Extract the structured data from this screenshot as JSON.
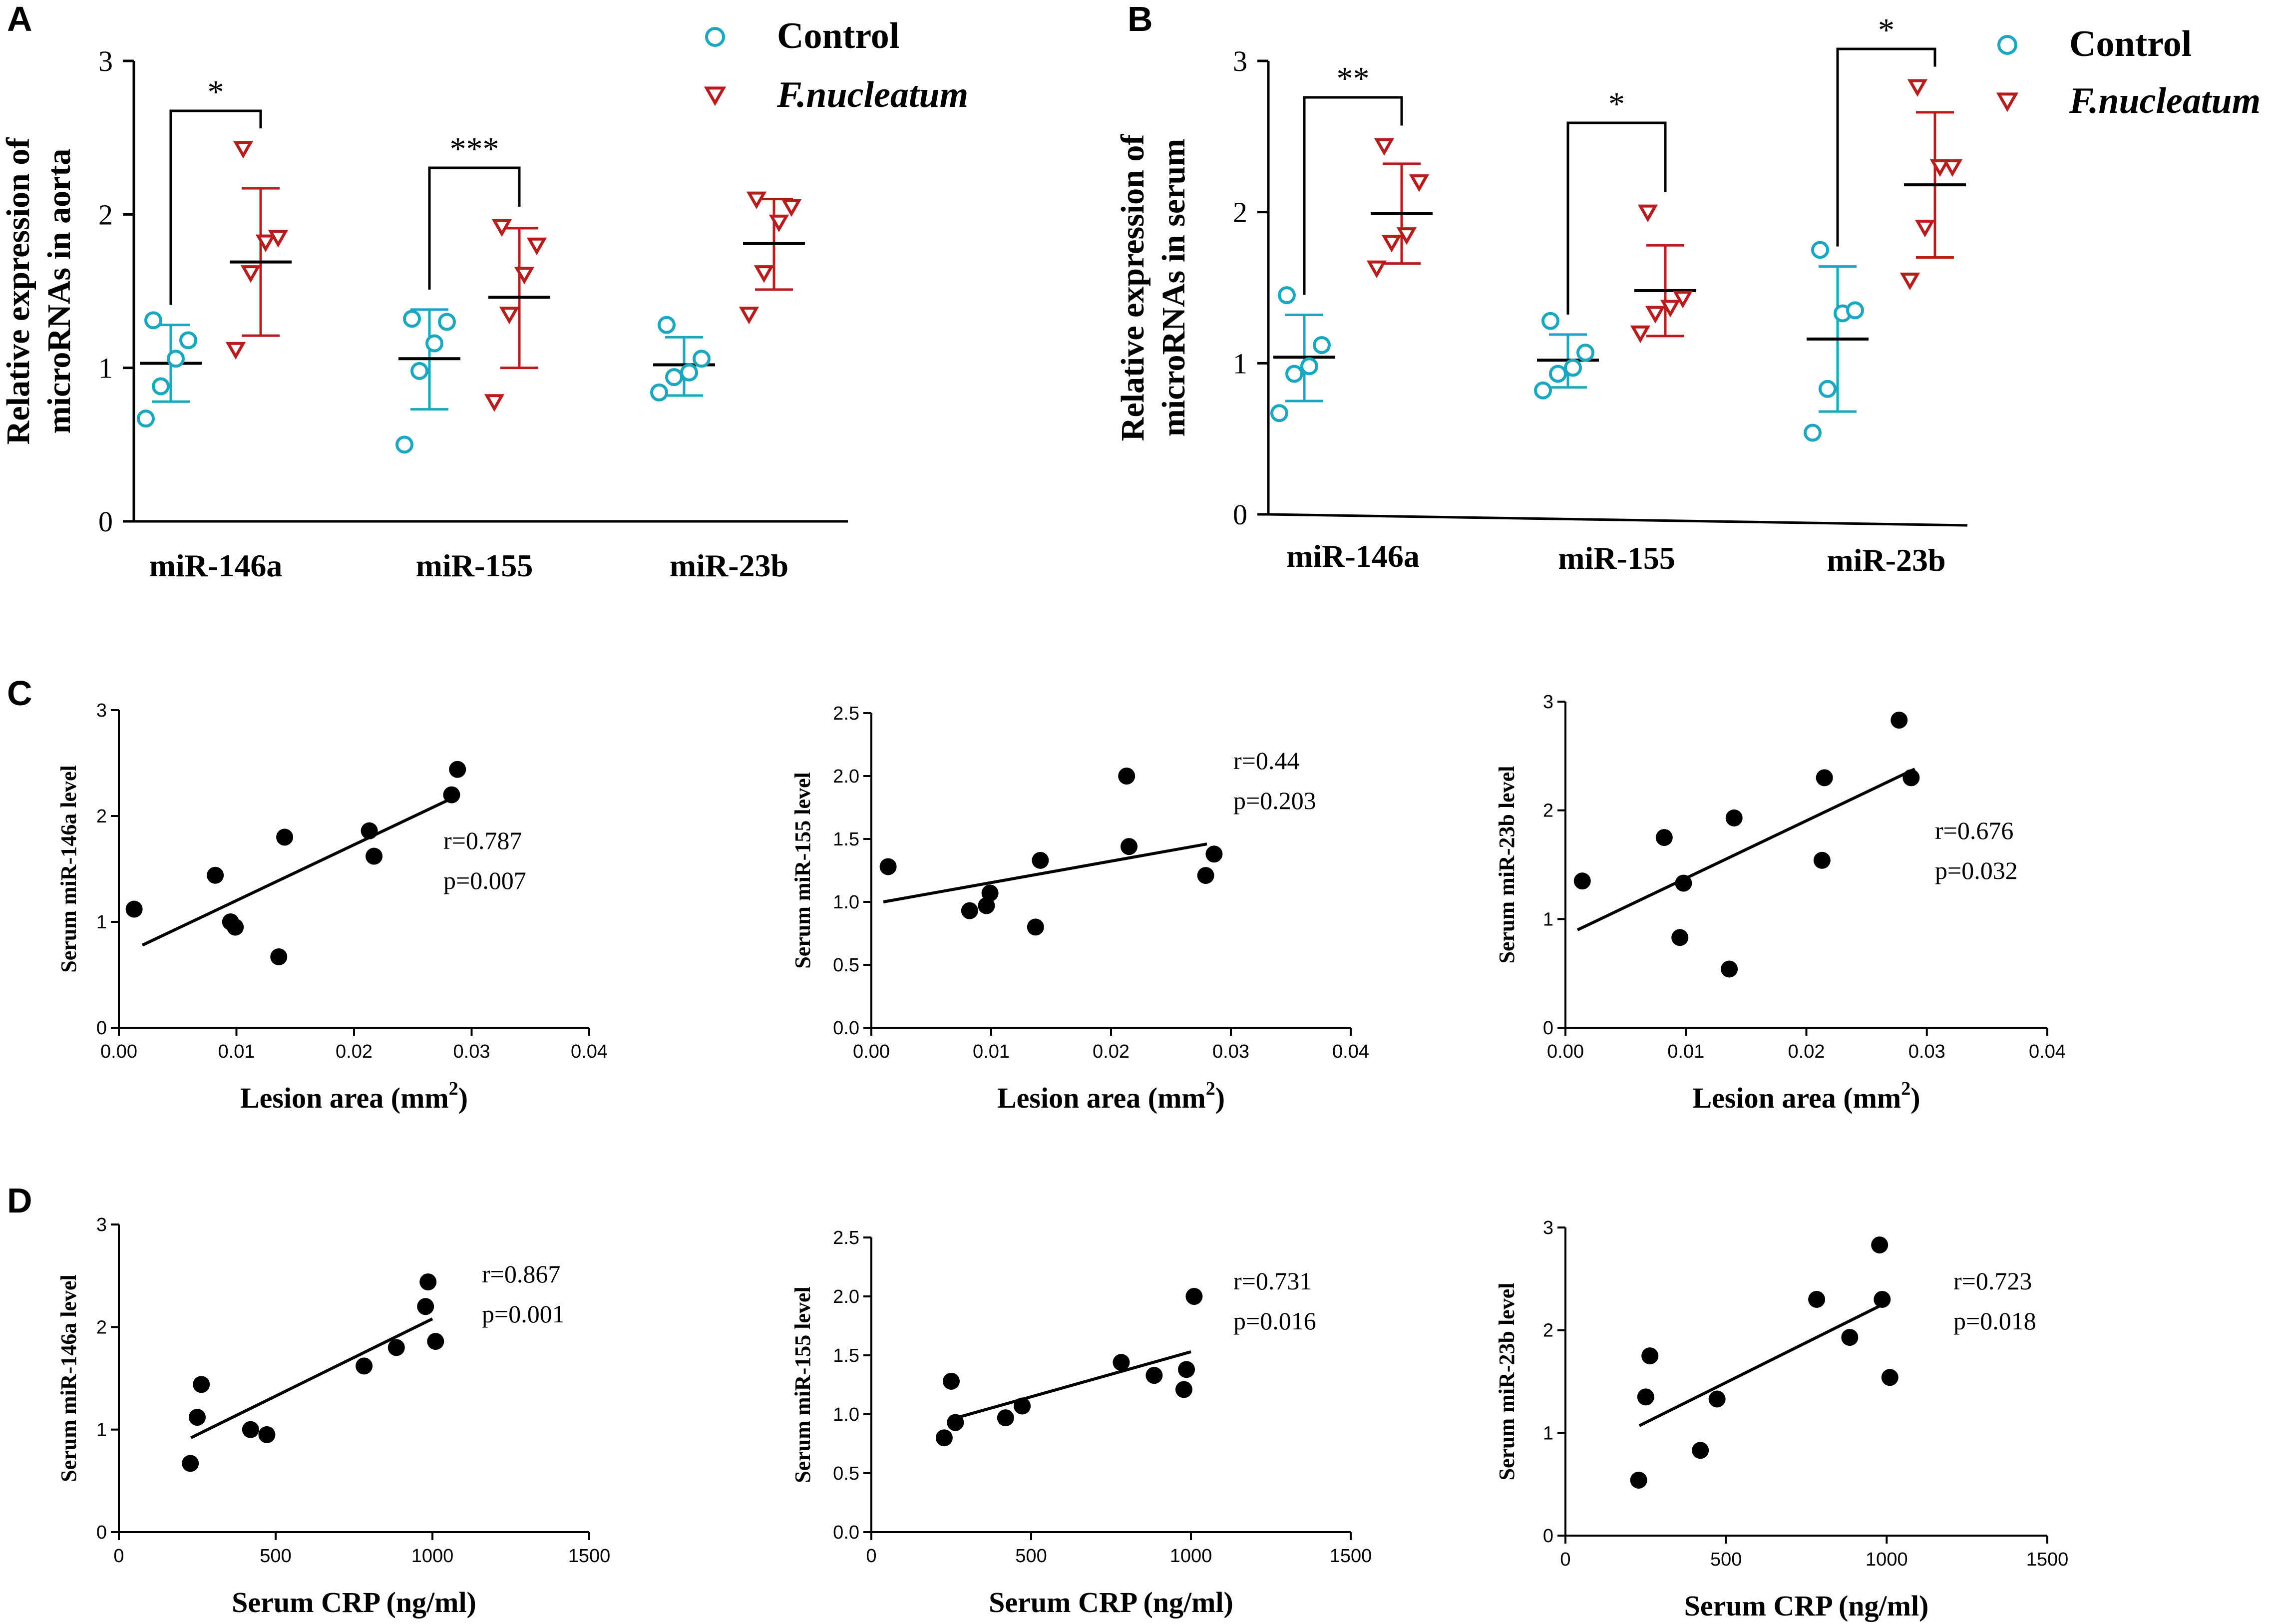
{
  "panels": {
    "A": "A",
    "B": "B",
    "C": "C",
    "D": "D"
  },
  "colors": {
    "control": "#1aa7bf",
    "fn": "#b81d1d",
    "line": "#000000"
  },
  "chart_data": [
    {
      "id": "A",
      "type": "scatter",
      "ylabel_lines": [
        "Relative expression of",
        "microRNAs  in aorta"
      ],
      "categories": [
        "miR-146a",
        "miR-155",
        "miR-23b"
      ],
      "legend": {
        "control": "Control",
        "fn": "F.nucleatum"
      },
      "ylim": [
        0,
        3
      ],
      "yticks": [
        0,
        1,
        2,
        3
      ],
      "groups": [
        {
          "cat": "miR-146a",
          "control": {
            "points": [
              0.67,
              0.88,
              1.06,
              1.18,
              1.31
            ],
            "mean": 1.03,
            "sd_low": 0.78,
            "sd_high": 1.28
          },
          "fn": {
            "points": [
              1.12,
              1.62,
              1.82,
              1.85,
              2.43
            ],
            "mean": 1.69,
            "sd_low": 1.21,
            "sd_high": 2.17
          },
          "sig": "*"
        },
        {
          "cat": "miR-155",
          "control": {
            "points": [
              0.5,
              0.98,
              1.16,
              1.3,
              1.32
            ],
            "mean": 1.06,
            "sd_low": 0.73,
            "sd_high": 1.38
          },
          "fn": {
            "points": [
              0.78,
              1.35,
              1.61,
              1.8,
              1.92
            ],
            "mean": 1.46,
            "sd_low": 1.0,
            "sd_high": 1.91
          },
          "sig": "***"
        },
        {
          "cat": "miR-23b",
          "control": {
            "points": [
              0.84,
              0.94,
              0.97,
              1.06,
              1.28
            ],
            "mean": 1.02,
            "sd_low": 0.82,
            "sd_high": 1.2
          },
          "fn": {
            "points": [
              1.35,
              1.62,
              1.95,
              2.05,
              2.1
            ],
            "mean": 1.81,
            "sd_low": 1.51,
            "sd_high": 2.1
          },
          "sig": ""
        }
      ]
    },
    {
      "id": "B",
      "type": "scatter",
      "ylabel_lines": [
        "Relative expression of",
        "microRNAs  in serum"
      ],
      "categories": [
        "miR-146a",
        "miR-155",
        "miR-23b"
      ],
      "legend": {
        "control": "Control",
        "fn": "F.nucleatum"
      },
      "ylim": [
        0,
        3
      ],
      "yticks": [
        0,
        1,
        2,
        3
      ],
      "groups": [
        {
          "cat": "miR-146a",
          "control": {
            "points": [
              0.67,
              0.93,
              0.98,
              1.12,
              1.45
            ],
            "mean": 1.04,
            "sd_low": 0.75,
            "sd_high": 1.32
          },
          "fn": {
            "points": [
              1.63,
              1.8,
              1.85,
              2.2,
              2.44
            ],
            "mean": 1.99,
            "sd_low": 1.66,
            "sd_high": 2.32
          },
          "sig": "**"
        },
        {
          "cat": "miR-155",
          "control": {
            "points": [
              0.82,
              0.93,
              0.97,
              1.07,
              1.28
            ],
            "mean": 1.02,
            "sd_low": 0.84,
            "sd_high": 1.19
          },
          "fn": {
            "points": [
              1.2,
              1.33,
              1.37,
              1.43,
              2.0
            ],
            "mean": 1.48,
            "sd_low": 1.18,
            "sd_high": 1.78
          },
          "sig": "*"
        },
        {
          "cat": "miR-23b",
          "control": {
            "points": [
              0.54,
              0.83,
              1.33,
              1.35,
              1.75
            ],
            "mean": 1.16,
            "sd_low": 0.68,
            "sd_high": 1.64
          },
          "fn": {
            "points": [
              1.55,
              1.9,
              2.3,
              2.3,
              2.83
            ],
            "mean": 2.18,
            "sd_low": 1.7,
            "sd_high": 2.66
          },
          "sig": "*"
        }
      ]
    },
    {
      "id": "C1",
      "type": "scatter",
      "xlabel": "Lesion area (mm",
      "xlabel_sup": "2",
      "xlabel_end": ")",
      "ylabel": "Serum miR-146a level",
      "xlim": [
        0,
        0.04
      ],
      "xticks": [
        "0.00",
        "0.01",
        "0.02",
        "0.03",
        "0.04"
      ],
      "ylim": [
        0,
        3
      ],
      "yticks": [
        "0",
        "1",
        "2",
        "3"
      ],
      "x": [
        0.0013,
        0.0082,
        0.0095,
        0.0099,
        0.0136,
        0.0141,
        0.0213,
        0.0217,
        0.0283,
        0.0288
      ],
      "y": [
        1.12,
        1.44,
        1.0,
        0.95,
        0.67,
        1.8,
        1.86,
        1.62,
        2.2,
        2.44
      ],
      "fit": {
        "x": [
          0.002,
          0.028
        ],
        "y": [
          0.78,
          2.15
        ]
      },
      "stats": [
        "r=0.787",
        "p=0.007"
      ]
    },
    {
      "id": "C2",
      "type": "scatter",
      "xlabel": "Lesion area (mm",
      "xlabel_sup": "2",
      "xlabel_end": ")",
      "ylabel": "Serum miR-155 level",
      "xlim": [
        0,
        0.04
      ],
      "xticks": [
        "0.00",
        "0.01",
        "0.02",
        "0.03",
        "0.04"
      ],
      "ylim": [
        0,
        2.5
      ],
      "yticks": [
        "0.0",
        "0.5",
        "1.0",
        "1.5",
        "2.0",
        "2.5"
      ],
      "x": [
        0.0014,
        0.0082,
        0.0096,
        0.0099,
        0.0137,
        0.0141,
        0.0213,
        0.0215,
        0.0279,
        0.0286
      ],
      "y": [
        1.28,
        0.93,
        0.97,
        1.07,
        0.8,
        1.33,
        2.0,
        1.44,
        1.21,
        1.38
      ],
      "fit": {
        "x": [
          0.001,
          0.028
        ],
        "y": [
          1.0,
          1.46
        ]
      },
      "stats": [
        "r=0.44",
        "p=0.203"
      ]
    },
    {
      "id": "C3",
      "type": "scatter",
      "xlabel": "Lesion area (mm",
      "xlabel_sup": "2",
      "xlabel_end": ")",
      "ylabel": "Serum miR-23b level",
      "xlim": [
        0,
        0.04
      ],
      "xticks": [
        "0.00",
        "0.01",
        "0.02",
        "0.03",
        "0.04"
      ],
      "ylim": [
        0,
        3
      ],
      "yticks": [
        "0",
        "1",
        "2",
        "3"
      ],
      "x": [
        0.0014,
        0.0082,
        0.0095,
        0.0098,
        0.0136,
        0.014,
        0.0213,
        0.0215,
        0.0277,
        0.0287
      ],
      "y": [
        1.35,
        1.75,
        0.83,
        1.33,
        0.54,
        1.93,
        1.54,
        2.3,
        2.83,
        2.3
      ],
      "fit": {
        "x": [
          0.001,
          0.029
        ],
        "y": [
          0.9,
          2.38
        ]
      },
      "stats": [
        "r=0.676",
        "p=0.032"
      ]
    },
    {
      "id": "D1",
      "type": "scatter",
      "xlabel": "Serum CRP (ng/ml)",
      "ylabel": "Serum miR-146a level",
      "xlim": [
        0,
        1500
      ],
      "xticks": [
        "0",
        "500",
        "1000",
        "1500"
      ],
      "ylim": [
        0,
        3
      ],
      "yticks": [
        "0",
        "1",
        "2",
        "3"
      ],
      "x": [
        228,
        250,
        263,
        420,
        472,
        782,
        885,
        978,
        986,
        1010
      ],
      "y": [
        0.67,
        1.12,
        1.44,
        1.0,
        0.95,
        1.62,
        1.8,
        2.2,
        2.44,
        1.86
      ],
      "fit": {
        "x": [
          230,
          1000
        ],
        "y": [
          0.92,
          2.08
        ]
      },
      "stats": [
        "r=0.867",
        "p=0.001"
      ]
    },
    {
      "id": "D2",
      "type": "scatter",
      "xlabel": "Serum CRP (ng/ml)",
      "ylabel": "Serum miR-155 level",
      "xlim": [
        0,
        1500
      ],
      "xticks": [
        "0",
        "500",
        "1000",
        "1500"
      ],
      "ylim": [
        0,
        2.5
      ],
      "yticks": [
        "0.0",
        "0.5",
        "1.0",
        "1.5",
        "2.0",
        "2.5"
      ],
      "x": [
        228,
        250,
        263,
        420,
        472,
        782,
        885,
        978,
        986,
        1010
      ],
      "y": [
        0.8,
        1.28,
        0.93,
        0.97,
        1.07,
        1.44,
        1.33,
        1.21,
        1.38,
        2.0
      ],
      "fit": {
        "x": [
          240,
          1000
        ],
        "y": [
          0.95,
          1.53
        ]
      },
      "stats": [
        "r=0.731",
        "p=0.016"
      ]
    },
    {
      "id": "D3",
      "type": "scatter",
      "xlabel": "Serum CRP (ng/ml)",
      "ylabel": "Serum miR-23b level",
      "xlim": [
        0,
        1500
      ],
      "xticks": [
        "0",
        "500",
        "1000",
        "1500"
      ],
      "ylim": [
        0,
        3
      ],
      "yticks": [
        "0",
        "1",
        "2",
        "3"
      ],
      "x": [
        228,
        250,
        263,
        420,
        472,
        782,
        885,
        978,
        986,
        1010
      ],
      "y": [
        0.54,
        1.35,
        1.75,
        0.83,
        1.33,
        2.3,
        1.93,
        2.83,
        2.3,
        1.54
      ],
      "fit": {
        "x": [
          230,
          1000
        ],
        "y": [
          1.07,
          2.27
        ]
      },
      "stats": [
        "r=0.723",
        "p=0.018"
      ]
    }
  ]
}
